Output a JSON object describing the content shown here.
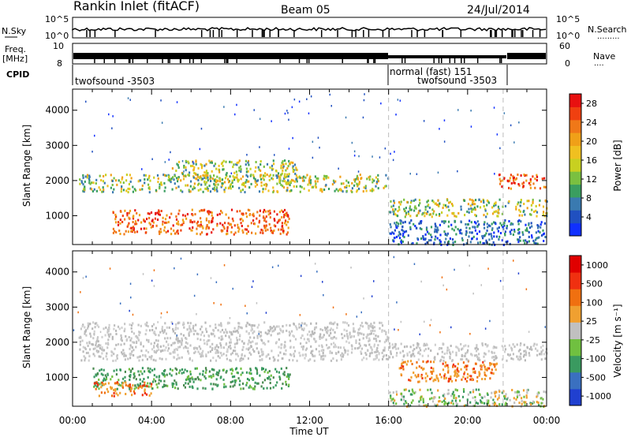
{
  "header": {
    "station": "Rankin Inlet (fitACF)",
    "beam": "Beam 05",
    "date": "24/Jul/2014"
  },
  "strip": {
    "nsky_label": "N.Sky",
    "nsearch_label": "N.Search",
    "nsky_ticks": [
      "10^5",
      "10^0"
    ],
    "nsearch_ticks": [
      "10^5",
      "10^0"
    ],
    "freq_label_1": "Freq.",
    "freq_label_2": "[MHz]",
    "freq_ticks": [
      "10",
      "8"
    ],
    "nave_label": "Nave",
    "nave_ticks": [
      "60",
      "0"
    ],
    "cpid_label": "CPID",
    "cpid_segments": [
      {
        "text": "twofsound -3503"
      },
      {
        "text": "normal (fast) 151"
      },
      {
        "text": "twofsound -3503"
      }
    ],
    "mode_change_hours": [
      16.0,
      21.8
    ]
  },
  "chart_data": [
    {
      "type": "heatmap",
      "ylabel": "Slant Range [km]",
      "xlabel": "Time UT",
      "x_tick_labels": [
        "00:00",
        "04:00",
        "08:00",
        "12:00",
        "16:00",
        "20:00",
        "00:00"
      ],
      "y_tick_labels": [
        "1000",
        "2000",
        "3000",
        "4000"
      ],
      "xlim": [
        0,
        24
      ],
      "ylim": [
        180,
        4600
      ],
      "colorbar": {
        "label": "Power [dB]",
        "ticks": [
          "4",
          "8",
          "12",
          "16",
          "20",
          "24",
          "28"
        ],
        "range": [
          0,
          30
        ],
        "colors": [
          "#1030ff",
          "#2050c0",
          "#3a7ab0",
          "#3a9e60",
          "#7ac040",
          "#c8d020",
          "#f0c020",
          "#f0a018",
          "#f07818",
          "#f04010",
          "#e81010"
        ]
      },
      "bands": [
        {
          "t0": 0.3,
          "t1": 16.0,
          "r0": 1700,
          "r1": 2200,
          "level": "medium"
        },
        {
          "t0": 2.0,
          "t1": 11.0,
          "r0": 500,
          "r1": 1200,
          "level": "high"
        },
        {
          "t0": 5.0,
          "t1": 11.5,
          "r0": 2000,
          "r1": 2600,
          "level": "medium"
        },
        {
          "t0": 16.0,
          "t1": 24.0,
          "r0": 1000,
          "r1": 1500,
          "level": "medium"
        },
        {
          "t0": 16.0,
          "t1": 24.0,
          "r0": 200,
          "r1": 900,
          "level": "low"
        },
        {
          "t0": 21.5,
          "t1": 24.0,
          "r0": 1800,
          "r1": 2200,
          "level": "high"
        }
      ]
    },
    {
      "type": "heatmap",
      "ylabel": "Slant Range [km]",
      "xlabel": "Time UT",
      "x_tick_labels": [
        "00:00",
        "04:00",
        "08:00",
        "12:00",
        "16:00",
        "20:00",
        "00:00"
      ],
      "y_tick_labels": [
        "1000",
        "2000",
        "3000",
        "4000"
      ],
      "xlim": [
        0,
        24
      ],
      "ylim": [
        180,
        4600
      ],
      "colorbar": {
        "label": "Velocity [m s⁻¹]",
        "ticks": [
          "1000",
          "500",
          "100",
          "25",
          "-25",
          "-100",
          "-500",
          "-1000"
        ],
        "colors": [
          "#2040d0",
          "#3a70c0",
          "#3a9a60",
          "#70c040",
          "#c0c0c0",
          "#f0a030",
          "#f07010",
          "#f03010",
          "#e00000"
        ]
      },
      "bands": [
        {
          "t0": 0.3,
          "t1": 16.0,
          "r0": 1500,
          "r1": 2600,
          "level": "grey"
        },
        {
          "t0": 1.0,
          "t1": 11.0,
          "r0": 700,
          "r1": 1300,
          "level": "green"
        },
        {
          "t0": 1.0,
          "t1": 4.0,
          "r0": 500,
          "r1": 900,
          "level": "orange"
        },
        {
          "t0": 16.5,
          "t1": 21.5,
          "r0": 900,
          "r1": 1500,
          "level": "orange"
        },
        {
          "t0": 16.0,
          "t1": 24.0,
          "r0": 1500,
          "r1": 2000,
          "level": "grey"
        },
        {
          "t0": 16.0,
          "t1": 24.0,
          "r0": 200,
          "r1": 700,
          "level": "mixed"
        }
      ]
    }
  ]
}
